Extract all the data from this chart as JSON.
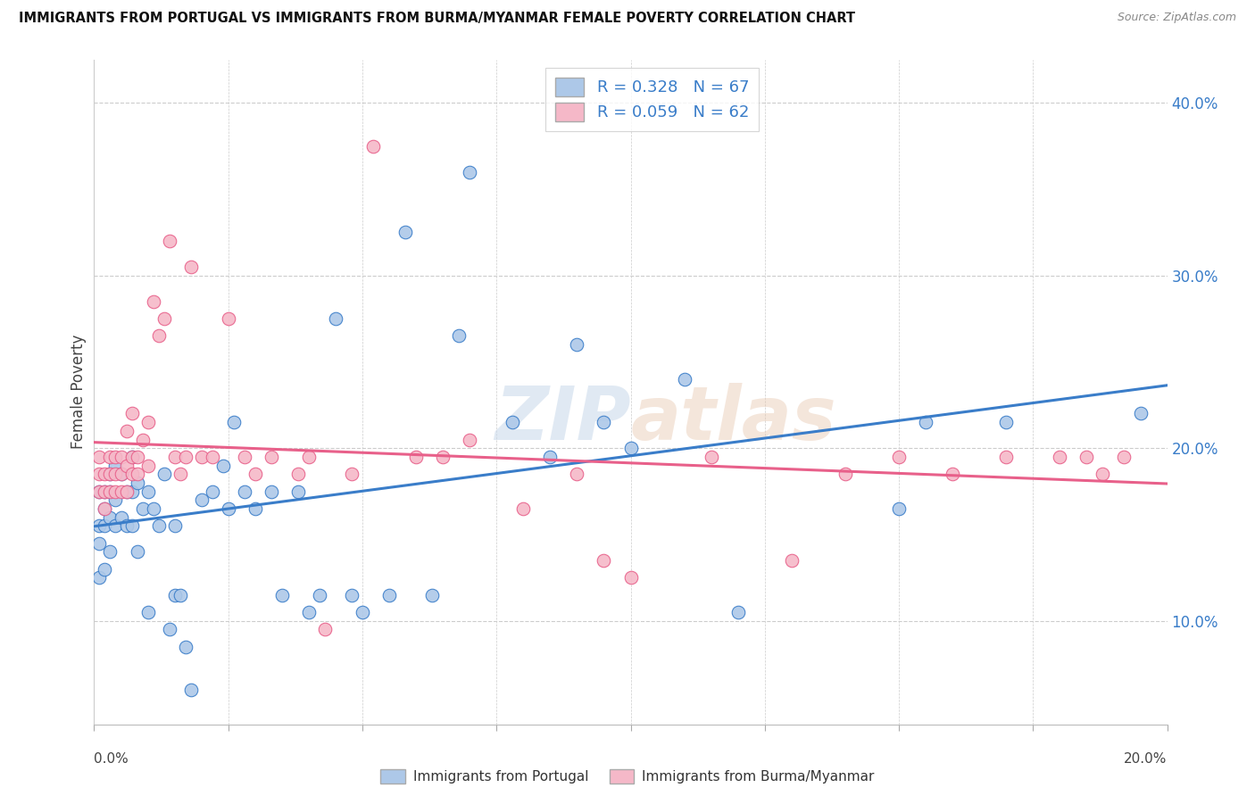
{
  "title": "IMMIGRANTS FROM PORTUGAL VS IMMIGRANTS FROM BURMA/MYANMAR FEMALE POVERTY CORRELATION CHART",
  "source": "Source: ZipAtlas.com",
  "ylabel": "Female Poverty",
  "right_ytick_vals": [
    0.1,
    0.2,
    0.3,
    0.4
  ],
  "xlim": [
    0.0,
    0.2
  ],
  "ylim": [
    0.04,
    0.425
  ],
  "R_portugal": 0.328,
  "N_portugal": 67,
  "R_burma": 0.059,
  "N_burma": 62,
  "color_portugal": "#adc8e8",
  "color_burma": "#f5b8c8",
  "line_color_portugal": "#3a7dc9",
  "line_color_burma": "#e8608a",
  "legend_label_portugal": "Immigrants from Portugal",
  "legend_label_burma": "Immigrants from Burma/Myanmar",
  "portugal_x": [
    0.001,
    0.001,
    0.001,
    0.001,
    0.002,
    0.002,
    0.002,
    0.002,
    0.003,
    0.003,
    0.003,
    0.003,
    0.004,
    0.004,
    0.004,
    0.005,
    0.005,
    0.006,
    0.006,
    0.007,
    0.007,
    0.007,
    0.008,
    0.008,
    0.009,
    0.01,
    0.01,
    0.011,
    0.012,
    0.013,
    0.014,
    0.015,
    0.015,
    0.016,
    0.017,
    0.018,
    0.02,
    0.022,
    0.024,
    0.025,
    0.026,
    0.028,
    0.03,
    0.033,
    0.035,
    0.038,
    0.04,
    0.042,
    0.045,
    0.048,
    0.05,
    0.055,
    0.058,
    0.063,
    0.068,
    0.07,
    0.078,
    0.085,
    0.09,
    0.095,
    0.1,
    0.11,
    0.12,
    0.15,
    0.155,
    0.17,
    0.195
  ],
  "portugal_y": [
    0.125,
    0.145,
    0.155,
    0.175,
    0.13,
    0.155,
    0.165,
    0.175,
    0.14,
    0.16,
    0.175,
    0.185,
    0.155,
    0.17,
    0.19,
    0.16,
    0.185,
    0.155,
    0.175,
    0.155,
    0.175,
    0.195,
    0.14,
    0.18,
    0.165,
    0.105,
    0.175,
    0.165,
    0.155,
    0.185,
    0.095,
    0.115,
    0.155,
    0.115,
    0.085,
    0.06,
    0.17,
    0.175,
    0.19,
    0.165,
    0.215,
    0.175,
    0.165,
    0.175,
    0.115,
    0.175,
    0.105,
    0.115,
    0.275,
    0.115,
    0.105,
    0.115,
    0.325,
    0.115,
    0.265,
    0.36,
    0.215,
    0.195,
    0.26,
    0.215,
    0.2,
    0.24,
    0.105,
    0.165,
    0.215,
    0.215,
    0.22
  ],
  "burma_x": [
    0.001,
    0.001,
    0.001,
    0.002,
    0.002,
    0.002,
    0.003,
    0.003,
    0.003,
    0.004,
    0.004,
    0.004,
    0.005,
    0.005,
    0.005,
    0.006,
    0.006,
    0.006,
    0.007,
    0.007,
    0.007,
    0.008,
    0.008,
    0.009,
    0.01,
    0.01,
    0.011,
    0.012,
    0.013,
    0.014,
    0.015,
    0.016,
    0.017,
    0.018,
    0.02,
    0.022,
    0.025,
    0.028,
    0.03,
    0.033,
    0.038,
    0.04,
    0.043,
    0.048,
    0.052,
    0.06,
    0.065,
    0.07,
    0.08,
    0.09,
    0.095,
    0.1,
    0.115,
    0.13,
    0.14,
    0.15,
    0.16,
    0.17,
    0.18,
    0.185,
    0.188,
    0.192
  ],
  "burma_y": [
    0.175,
    0.185,
    0.195,
    0.165,
    0.175,
    0.185,
    0.175,
    0.185,
    0.195,
    0.175,
    0.185,
    0.195,
    0.175,
    0.185,
    0.195,
    0.175,
    0.19,
    0.21,
    0.185,
    0.22,
    0.195,
    0.185,
    0.195,
    0.205,
    0.19,
    0.215,
    0.285,
    0.265,
    0.275,
    0.32,
    0.195,
    0.185,
    0.195,
    0.305,
    0.195,
    0.195,
    0.275,
    0.195,
    0.185,
    0.195,
    0.185,
    0.195,
    0.095,
    0.185,
    0.375,
    0.195,
    0.195,
    0.205,
    0.165,
    0.185,
    0.135,
    0.125,
    0.195,
    0.135,
    0.185,
    0.195,
    0.185,
    0.195,
    0.195,
    0.195,
    0.185,
    0.195
  ]
}
